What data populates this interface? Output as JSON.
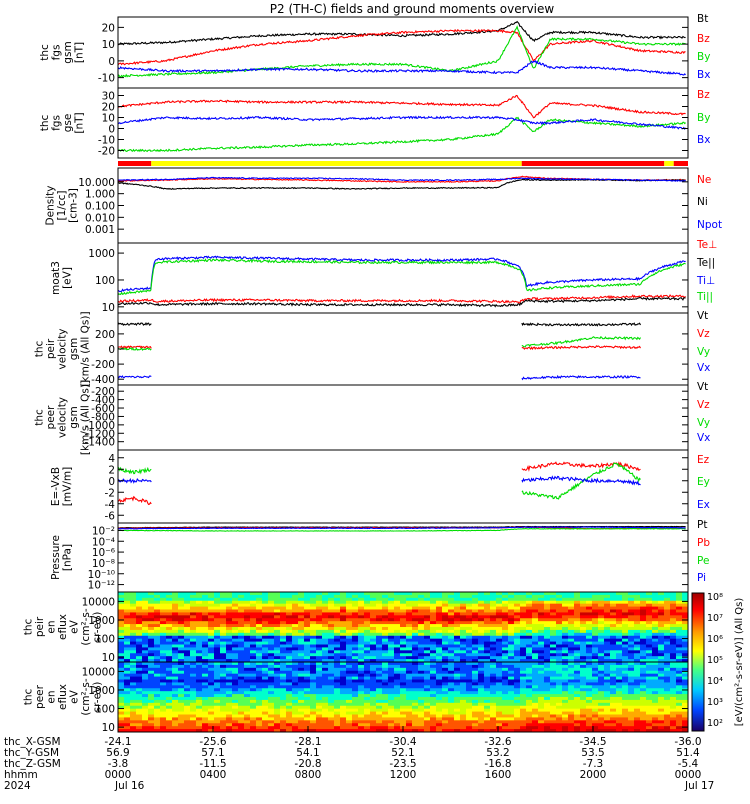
{
  "title": "P2 (TH-C) fields and ground moments overview",
  "colors": {
    "red": "#ff0000",
    "green": "#00dd00",
    "blue": "#0000ff",
    "black": "#000000",
    "yellow": "#ffff00",
    "white": "#ffffff",
    "panel_border": "#000000"
  },
  "panels": [
    {
      "id": "fgs-gsm",
      "ylabel": [
        "thc",
        "fgs",
        "gsm",
        "[nT]"
      ],
      "ylim": [
        -15,
        25
      ],
      "ticks": [
        {
          "v": 20,
          "t": "20"
        },
        {
          "v": 10,
          "t": "10"
        },
        {
          "v": 0,
          "t": "0"
        },
        {
          "v": -10,
          "t": "-10"
        }
      ],
      "legend": [
        {
          "text": "Bt",
          "color": "#000000"
        },
        {
          "text": "Bz",
          "color": "#ff0000"
        },
        {
          "text": "By",
          "color": "#00dd00"
        },
        {
          "text": "Bx",
          "color": "#0000ff"
        }
      ]
    },
    {
      "id": "fgs-gse",
      "ylabel": [
        "thc",
        "fgs",
        "gse",
        "[nT]"
      ],
      "ylim": [
        -25,
        35
      ],
      "ticks": [
        {
          "v": 30,
          "t": "30"
        },
        {
          "v": 20,
          "t": "20"
        },
        {
          "v": 10,
          "t": "10"
        },
        {
          "v": 0,
          "t": "0"
        },
        {
          "v": -10,
          "t": "-10"
        },
        {
          "v": -20,
          "t": "-20"
        }
      ],
      "legend": [
        {
          "text": "Bz",
          "color": "#ff0000"
        },
        {
          "text": "By",
          "color": "#00dd00"
        },
        {
          "text": "Bx",
          "color": "#0000ff"
        }
      ]
    },
    {
      "id": "density",
      "ylabel": [
        "Density",
        "[1/cc]",
        "[cm-3]"
      ],
      "ylim": [
        0.0001,
        100
      ],
      "log": true,
      "ticks": [
        {
          "v": 10,
          "t": "10.000"
        },
        {
          "v": 1,
          "t": "1.000"
        },
        {
          "v": 0.1,
          "t": "0.100"
        },
        {
          "v": 0.01,
          "t": "0.010"
        },
        {
          "v": 0.001,
          "t": "0.001"
        }
      ],
      "legend": [
        {
          "text": "Ne",
          "color": "#ff0000"
        },
        {
          "text": "Ni",
          "color": "#000000"
        },
        {
          "text": "Npot",
          "color": "#0000ff"
        }
      ]
    },
    {
      "id": "temperature",
      "ylabel": [
        "moat3",
        "[eV]"
      ],
      "ylim": [
        7,
        2000
      ],
      "log": true,
      "ticks": [
        {
          "v": 1000,
          "t": "1000"
        },
        {
          "v": 100,
          "t": "100"
        },
        {
          "v": 10,
          "t": "10"
        }
      ],
      "legend": [
        {
          "text": "Te⊥",
          "color": "#ff0000"
        },
        {
          "text": "Te||",
          "color": "#000000"
        },
        {
          "text": "Ti⊥",
          "color": "#0000ff"
        },
        {
          "text": "Ti||",
          "color": "#00dd00"
        }
      ]
    },
    {
      "id": "peir-velocity",
      "ylabel": [
        "thc",
        "peir",
        "velocity",
        "gsm",
        "[km/s (All Qs)]"
      ],
      "ylim": [
        -450,
        450
      ],
      "ticks": [
        {
          "v": 200,
          "t": "200"
        },
        {
          "v": 0,
          "t": "0"
        },
        {
          "v": -200,
          "t": "-200"
        },
        {
          "v": -400,
          "t": "-400"
        }
      ],
      "legend": [
        {
          "text": "Vt",
          "color": "#000000"
        },
        {
          "text": "Vz",
          "color": "#ff0000"
        },
        {
          "text": "Vy",
          "color": "#00dd00"
        },
        {
          "text": "Vx",
          "color": "#0000ff"
        }
      ]
    },
    {
      "id": "peer-velocity",
      "ylabel": [
        "thc",
        "peer",
        "velocity",
        "gsm",
        "[km/s (All Qs)]"
      ],
      "ylim": [
        -1550,
        -100
      ],
      "ticks": [
        {
          "v": -200,
          "t": "-200"
        },
        {
          "v": -400,
          "t": "-400"
        },
        {
          "v": -600,
          "t": "-600"
        },
        {
          "v": -800,
          "t": "-800"
        },
        {
          "v": -1000,
          "t": "-1000"
        },
        {
          "v": -1200,
          "t": "-1200"
        },
        {
          "v": -1400,
          "t": "-1400"
        }
      ],
      "legend": [
        {
          "text": "Vt",
          "color": "#000000"
        },
        {
          "text": "Vz",
          "color": "#ff0000"
        },
        {
          "text": "Vy",
          "color": "#00dd00"
        },
        {
          "text": "Vx",
          "color": "#0000ff"
        }
      ]
    },
    {
      "id": "efield",
      "ylabel": [
        "E=-VxB",
        "[mV/m]"
      ],
      "ylim": [
        -7,
        5
      ],
      "ticks": [
        {
          "v": 4,
          "t": "4"
        },
        {
          "v": 2,
          "t": "2"
        },
        {
          "v": 0,
          "t": "0"
        },
        {
          "v": -2,
          "t": "-2"
        },
        {
          "v": -4,
          "t": "-4"
        },
        {
          "v": -6,
          "t": "-6"
        }
      ],
      "legend": [
        {
          "text": "Ez",
          "color": "#ff0000"
        },
        {
          "text": "Ey",
          "color": "#00dd00"
        },
        {
          "text": "Ex",
          "color": "#0000ff"
        }
      ]
    },
    {
      "id": "pressure",
      "ylabel": [
        "Pressure",
        "[nPa]"
      ],
      "ylim": [
        1e-13,
        0.1
      ],
      "log": true,
      "ticks": [
        {
          "v": 0.01,
          "t": "10⁻²"
        },
        {
          "v": 0.0001,
          "t": "10⁻⁴"
        },
        {
          "v": 1e-06,
          "t": "10⁻⁶"
        },
        {
          "v": 1e-08,
          "t": "10⁻⁸"
        },
        {
          "v": 1e-10,
          "t": "10⁻¹⁰"
        },
        {
          "v": 1e-12,
          "t": "10⁻¹²"
        }
      ],
      "legend": [
        {
          "text": "Pt",
          "color": "#000000"
        },
        {
          "text": "Pb",
          "color": "#ff0000"
        },
        {
          "text": "Pe",
          "color": "#00dd00"
        },
        {
          "text": "Pi",
          "color": "#0000ff"
        }
      ]
    },
    {
      "id": "peir-spec",
      "ylabel": [
        "thc",
        "peir",
        "en",
        "eflux",
        "eV",
        "(cm²-s-",
        "sr-eV)"
      ],
      "ylim": [
        7,
        25000
      ],
      "log": true,
      "ticks": [
        {
          "v": 10000,
          "t": "10000"
        },
        {
          "v": 1000,
          "t": "1000"
        },
        {
          "v": 100,
          "t": "100"
        },
        {
          "v": 10,
          "t": "10"
        }
      ]
    },
    {
      "id": "peer-spec",
      "ylabel": [
        "thc",
        "peer",
        "en",
        "eflux",
        "eV",
        "(cm²-s-",
        "sr-eV)"
      ],
      "ylim": [
        7,
        25000
      ],
      "log": true,
      "ticks": [
        {
          "v": 10000,
          "t": "10000"
        },
        {
          "v": 1000,
          "t": "1000"
        },
        {
          "v": 100,
          "t": "100"
        },
        {
          "v": 10,
          "t": "10"
        }
      ]
    }
  ],
  "colorbar": {
    "label": "[eV/(cm²-s-sr-eV)] (All Qs)",
    "ticks": [
      "10⁸",
      "10⁷",
      "10⁶",
      "10⁵",
      "10⁴",
      "10³",
      "10²"
    ]
  },
  "bottom_axis": {
    "row_labels": [
      "thc_X-GSM",
      "thc_Y-GSM",
      "thc_Z-GSM",
      "hhmm",
      "2024"
    ],
    "columns": [
      [
        "-24.1",
        "56.9",
        "-3.8",
        "0000",
        "Jul 16"
      ],
      [
        "-25.6",
        "57.1",
        "-11.5",
        "0400",
        ""
      ],
      [
        "-28.1",
        "54.1",
        "-20.8",
        "0800",
        ""
      ],
      [
        "-30.4",
        "52.1",
        "-23.5",
        "1200",
        ""
      ],
      [
        "-32.6",
        "53.2",
        "-16.8",
        "1600",
        ""
      ],
      [
        "-34.5",
        "53.5",
        "-7.3",
        "2000",
        ""
      ],
      [
        "-36.0",
        "51.4",
        "-5.4",
        "0000",
        "Jul 17"
      ]
    ]
  },
  "chart_data": {
    "type": "line",
    "title": "P2 (TH-C) fields and ground moments overview",
    "xlabel": "",
    "x": [
      "0000",
      "0400",
      "0800",
      "1200",
      "1600",
      "2000",
      "0000"
    ],
    "x_hours": [
      0,
      4,
      8,
      12,
      16,
      20,
      24
    ],
    "dates": [
      "Jul 16",
      "Jul 17"
    ],
    "panels": [
      {
        "name": "fgs gsm",
        "ylim": [
          -15,
          25
        ],
        "hours": [
          0,
          2,
          4,
          6,
          8,
          10,
          12,
          14,
          16,
          16.8,
          17.5,
          18.2,
          20,
          22,
          23.9
        ],
        "series": [
          {
            "name": "Bt",
            "values": [
              10,
              11,
              13,
              15,
              16,
              16,
              15,
              16,
              18,
              23,
              12,
              17,
              17,
              14,
              14
            ]
          },
          {
            "name": "Bz",
            "values": [
              -2,
              0,
              6,
              10,
              12,
              15,
              17,
              18,
              18,
              17,
              0,
              10,
              12,
              6,
              5
            ]
          },
          {
            "name": "By",
            "values": [
              -9,
              -8,
              -7,
              -5,
              -3,
              -2,
              -2,
              -6,
              0,
              20,
              -5,
              13,
              13,
              10,
              10
            ]
          },
          {
            "name": "Bx",
            "values": [
              -4,
              -6,
              -6,
              -5,
              -5,
              -6,
              -6,
              -6,
              -7,
              -7,
              0,
              -4,
              -4,
              -6,
              -8
            ]
          }
        ]
      },
      {
        "name": "fgs gse",
        "ylim": [
          -25,
          35
        ],
        "hours": [
          0,
          2,
          4,
          6,
          8,
          10,
          12,
          14,
          16,
          16.8,
          17.5,
          18.2,
          20,
          22,
          23.9
        ],
        "series": [
          {
            "name": "Bz",
            "values": [
              20,
              24,
              25,
              24,
              24,
              24,
              23,
              22,
              21,
              30,
              10,
              23,
              21,
              15,
              13
            ]
          },
          {
            "name": "By",
            "values": [
              -20,
              -20,
              -18,
              -17,
              -15,
              -14,
              -12,
              -10,
              -5,
              10,
              -3,
              8,
              5,
              2,
              5
            ]
          },
          {
            "name": "Bx",
            "values": [
              5,
              10,
              9,
              10,
              8,
              9,
              10,
              10,
              10,
              8,
              5,
              5,
              8,
              4,
              0
            ]
          }
        ]
      },
      {
        "name": "Density",
        "ylim": [
          0.0001,
          100
        ],
        "hours": [
          0,
          2,
          4,
          6,
          8,
          10,
          12,
          14,
          16,
          17.0,
          18,
          20,
          22,
          23.9
        ],
        "series": [
          {
            "name": "Ne",
            "values": [
              12,
              14,
              18,
              16,
              14,
              12,
              10,
              10,
              12,
              28,
              20,
              16,
              14,
              15
            ]
          },
          {
            "name": "Ni",
            "values": [
              8,
              2.5,
              3,
              3,
              3,
              2.5,
              3,
              3,
              3.2,
              15,
              14,
              15,
              13,
              14
            ]
          },
          {
            "name": "Npot",
            "values": [
              14,
              16,
              22,
              20,
              20,
              18,
              14,
              14,
              16,
              20,
              18,
              16,
              14,
              12
            ]
          }
        ]
      },
      {
        "name": "moat3",
        "ylim": [
          7,
          2000
        ],
        "hours": [
          0,
          1.4,
          1.6,
          4,
          6,
          8,
          10,
          12,
          14,
          16,
          16.9,
          17.2,
          18,
          20,
          22,
          23.9
        ],
        "series": [
          {
            "name": "Te⊥",
            "values": [
              16,
              18,
              16,
              18,
              18,
              17,
              17,
              17,
              17,
              16,
              15,
              20,
              20,
              22,
              25,
              25
            ]
          },
          {
            "name": "Te||",
            "values": [
              13,
              14,
              12,
              13,
              13,
              12,
              12,
              12,
              12,
              11,
              12,
              17,
              16,
              17,
              20,
              20
            ]
          },
          {
            "name": "Ti⊥",
            "values": [
              40,
              50,
              600,
              700,
              650,
              600,
              550,
              550,
              550,
              600,
              300,
              60,
              80,
              100,
              110,
              500
            ]
          },
          {
            "name": "Ti||",
            "values": [
              30,
              40,
              450,
              550,
              500,
              480,
              450,
              450,
              450,
              450,
              250,
              40,
              50,
              60,
              70,
              400
            ]
          }
        ]
      },
      {
        "name": "peir velocity gsm",
        "ylim": [
          -450,
          450
        ],
        "segments": [
          [
            0,
            1.4
          ],
          [
            17.0,
            22.0
          ]
        ],
        "hours": [
          0,
          0.7,
          1.4,
          17.0,
          18.5,
          20,
          22.0
        ],
        "series": [
          {
            "name": "Vt",
            "values": [
              330,
              330,
              330,
              330,
              320,
              320,
              330
            ]
          },
          {
            "name": "Vz",
            "values": [
              20,
              30,
              20,
              10,
              20,
              30,
              20
            ]
          },
          {
            "name": "Vy",
            "values": [
              0,
              0,
              0,
              40,
              80,
              150,
              140
            ]
          },
          {
            "name": "Vx",
            "values": [
              -370,
              -370,
              -370,
              -390,
              -370,
              -370,
              -370
            ]
          }
        ]
      },
      {
        "name": "peer velocity gsm",
        "ylim": [
          -1550,
          -100
        ],
        "series": []
      },
      {
        "name": "E=-VxB",
        "ylim": [
          -7,
          5
        ],
        "segments": [
          [
            0,
            1.4
          ],
          [
            17.0,
            22.0
          ]
        ],
        "hours": [
          0,
          0.7,
          1.4,
          17.0,
          18.5,
          20,
          21,
          22.0
        ],
        "series": [
          {
            "name": "Ez",
            "values": [
              -3.5,
              -3,
              -4,
              2,
              3,
              2.5,
              3,
              2
            ]
          },
          {
            "name": "Ey",
            "values": [
              2,
              1.5,
              2,
              -2,
              -3,
              1,
              3,
              0
            ]
          },
          {
            "name": "Ex",
            "values": [
              0,
              0,
              0,
              0,
              0.5,
              0,
              0,
              -0.5
            ]
          }
        ]
      },
      {
        "name": "Pressure",
        "ylim": [
          1e-13,
          0.1
        ],
        "hours": [
          0,
          4,
          8,
          12,
          16,
          17.0,
          20,
          23.9
        ],
        "series": [
          {
            "name": "Pt",
            "values": [
              0.03,
              0.04,
              0.04,
              0.04,
              0.04,
              0.05,
              0.05,
              0.05
            ]
          },
          {
            "name": "Pb",
            "values": [
              0.025,
              0.03,
              0.03,
              0.03,
              0.03,
              0.04,
              0.02,
              0.03
            ]
          },
          {
            "name": "Pe",
            "values": [
              0.01,
              0.008,
              0.008,
              0.008,
              0.01,
              0.02,
              0.02,
              0.02
            ]
          },
          {
            "name": "Pi",
            "values": [
              0.02,
              0.025,
              0.025,
              0.025,
              0.03,
              0.04,
              0.04,
              0.03
            ]
          }
        ]
      },
      {
        "name": "peir en eflux",
        "type": "heatmap",
        "ylim": [
          7,
          25000
        ]
      },
      {
        "name": "peer en eflux",
        "type": "heatmap",
        "ylim": [
          7,
          25000
        ]
      }
    ]
  }
}
